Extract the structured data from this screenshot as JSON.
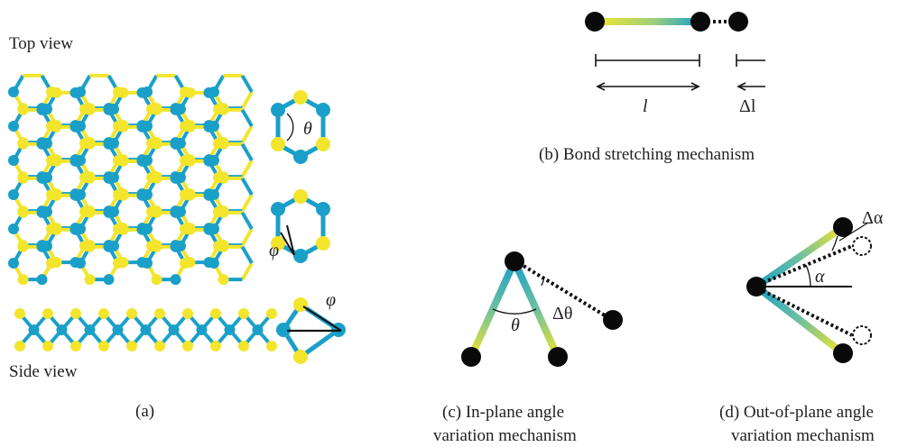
{
  "colors": {
    "yellow": "#f2e52c",
    "blue": "#1aa0c8",
    "atom": "#0a0a0a"
  },
  "panel_a": {
    "top_view_label": "Top view",
    "side_view_label": "Side view",
    "caption": "(a)",
    "theta": "θ",
    "phi_1": "φ",
    "phi_2": "φ"
  },
  "panel_b": {
    "length_symbol": "l",
    "delta_length_symbol": "Δl",
    "caption": "(b) Bond stretching mechanism"
  },
  "panel_c": {
    "theta": "θ",
    "delta_theta": "Δθ",
    "caption_line1": "(c) In-plane angle",
    "caption_line2": "variation mechanism"
  },
  "panel_d": {
    "alpha": "α",
    "delta_alpha": "Δα",
    "caption_line1": "(d) Out-of-plane angle",
    "caption_line2": "variation mechanism"
  }
}
